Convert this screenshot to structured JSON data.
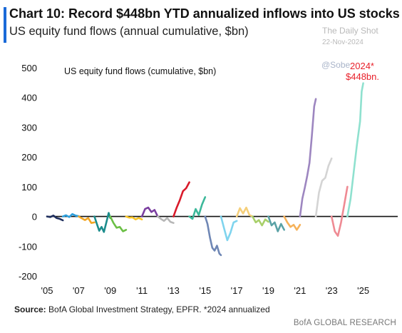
{
  "header": {
    "title": "Chart 10: Record $448bn YTD annualized inflows into US stocks",
    "subtitle": "US equity fund flows (annual cumulative, $bn)"
  },
  "watermark": {
    "line1": "The Daily Shot",
    "line2": "22-Nov-2024",
    "handle": "@Sobe"
  },
  "footer": {
    "source_label": "Source:",
    "source_text": " BofA Global Investment Strategy, EPFR. *2024 annualized",
    "brand": "BofA GLOBAL RESEARCH"
  },
  "chart_data": {
    "type": "line",
    "inner_label": "US equity fund flows (cumulative, $bn)",
    "annotation": {
      "line1": "2024*",
      "line2": "$448bn.",
      "color": "#e8202a"
    },
    "x_tick_labels": [
      "'05",
      "'07",
      "'09",
      "'11",
      "'13",
      "'15",
      "'17",
      "'19",
      "'21",
      "'23",
      "'25"
    ],
    "x_ticks": [
      2005,
      2007,
      2009,
      2011,
      2013,
      2015,
      2017,
      2019,
      2021,
      2023,
      2025
    ],
    "y_ticks": [
      -200,
      -100,
      0,
      100,
      200,
      300,
      400,
      500
    ],
    "xlim": [
      2005,
      2027
    ],
    "ylim": [
      -200,
      500
    ],
    "grid": false,
    "series": [
      {
        "year": 2005,
        "color": "#1f2f5e",
        "points": [
          [
            2005.0,
            0
          ],
          [
            2005.2,
            -2
          ],
          [
            2005.4,
            3
          ],
          [
            2005.6,
            -5
          ],
          [
            2005.8,
            -8
          ],
          [
            2006.0,
            -13
          ]
        ]
      },
      {
        "year": 2006,
        "color": "#2ea0dd",
        "points": [
          [
            2006.0,
            0
          ],
          [
            2006.2,
            4
          ],
          [
            2006.4,
            -2
          ],
          [
            2006.6,
            8
          ],
          [
            2006.8,
            3
          ],
          [
            2007.0,
            1
          ]
        ]
      },
      {
        "year": 2007,
        "color": "#f2a623",
        "points": [
          [
            2007.0,
            0
          ],
          [
            2007.2,
            -6
          ],
          [
            2007.4,
            -12
          ],
          [
            2007.6,
            -5
          ],
          [
            2007.8,
            -22
          ],
          [
            2008.0,
            -20
          ]
        ]
      },
      {
        "year": 2008,
        "color": "#1b8c8c",
        "points": [
          [
            2008.0,
            0
          ],
          [
            2008.15,
            -25
          ],
          [
            2008.3,
            -48
          ],
          [
            2008.45,
            -35
          ],
          [
            2008.6,
            -52
          ],
          [
            2008.75,
            -20
          ],
          [
            2008.9,
            12
          ],
          [
            2009.0,
            -5
          ]
        ]
      },
      {
        "year": 2009,
        "color": "#6bbf45",
        "points": [
          [
            2009.0,
            0
          ],
          [
            2009.2,
            -22
          ],
          [
            2009.4,
            -38
          ],
          [
            2009.6,
            -35
          ],
          [
            2009.8,
            -50
          ],
          [
            2010.0,
            -45
          ]
        ]
      },
      {
        "year": 2010,
        "color": "#f7c325",
        "points": [
          [
            2010.0,
            0
          ],
          [
            2010.2,
            -4
          ],
          [
            2010.4,
            -3
          ],
          [
            2010.6,
            -10
          ],
          [
            2010.8,
            -5
          ],
          [
            2011.0,
            -10
          ]
        ]
      },
      {
        "year": 2011,
        "color": "#7b3fa0",
        "points": [
          [
            2011.0,
            0
          ],
          [
            2011.2,
            25
          ],
          [
            2011.4,
            30
          ],
          [
            2011.6,
            15
          ],
          [
            2011.8,
            22
          ],
          [
            2012.0,
            0
          ]
        ]
      },
      {
        "year": 2012,
        "color": "#b7b7b7",
        "points": [
          [
            2012.0,
            0
          ],
          [
            2012.2,
            -8
          ],
          [
            2012.4,
            -15
          ],
          [
            2012.6,
            -5
          ],
          [
            2012.8,
            -18
          ],
          [
            2013.0,
            -22
          ]
        ]
      },
      {
        "year": 2013,
        "color": "#d91a2a",
        "points": [
          [
            2013.0,
            0
          ],
          [
            2013.2,
            30
          ],
          [
            2013.4,
            55
          ],
          [
            2013.6,
            85
          ],
          [
            2013.8,
            95
          ],
          [
            2014.0,
            115
          ]
        ]
      },
      {
        "year": 2014,
        "color": "#3cb89a",
        "points": [
          [
            2014.0,
            0
          ],
          [
            2014.2,
            -8
          ],
          [
            2014.4,
            25
          ],
          [
            2014.6,
            5
          ],
          [
            2014.8,
            40
          ],
          [
            2015.0,
            65
          ]
        ]
      },
      {
        "year": 2015,
        "color": "#6f87b5",
        "points": [
          [
            2015.0,
            0
          ],
          [
            2015.15,
            -25
          ],
          [
            2015.3,
            -70
          ],
          [
            2015.45,
            -105
          ],
          [
            2015.6,
            -115
          ],
          [
            2015.75,
            -98
          ],
          [
            2015.9,
            -125
          ],
          [
            2016.0,
            -130
          ]
        ]
      },
      {
        "year": 2016,
        "color": "#7fd4ee",
        "points": [
          [
            2016.0,
            0
          ],
          [
            2016.2,
            -40
          ],
          [
            2016.4,
            -80
          ],
          [
            2016.6,
            -55
          ],
          [
            2016.8,
            -20
          ],
          [
            2017.0,
            -15
          ]
        ]
      },
      {
        "year": 2017,
        "color": "#f5cf7a",
        "points": [
          [
            2017.0,
            0
          ],
          [
            2017.2,
            28
          ],
          [
            2017.4,
            10
          ],
          [
            2017.6,
            30
          ],
          [
            2017.8,
            5
          ],
          [
            2018.0,
            0
          ]
        ]
      },
      {
        "year": 2018,
        "color": "#a8d06a",
        "points": [
          [
            2018.0,
            0
          ],
          [
            2018.2,
            -20
          ],
          [
            2018.4,
            -12
          ],
          [
            2018.6,
            -30
          ],
          [
            2018.8,
            -10
          ],
          [
            2019.0,
            -18
          ]
        ]
      },
      {
        "year": 2019,
        "color": "#5aa2a6",
        "points": [
          [
            2019.0,
            0
          ],
          [
            2019.2,
            -30
          ],
          [
            2019.4,
            -20
          ],
          [
            2019.6,
            -50
          ],
          [
            2019.8,
            -25
          ],
          [
            2020.0,
            -45
          ]
        ]
      },
      {
        "year": 2020,
        "color": "#f6b25a",
        "points": [
          [
            2020.0,
            0
          ],
          [
            2020.2,
            -20
          ],
          [
            2020.4,
            -35
          ],
          [
            2020.6,
            -28
          ],
          [
            2020.8,
            -45
          ],
          [
            2021.0,
            -28
          ]
        ]
      },
      {
        "year": 2021,
        "color": "#9d86c0",
        "points": [
          [
            2021.0,
            0
          ],
          [
            2021.15,
            60
          ],
          [
            2021.3,
            95
          ],
          [
            2021.45,
            135
          ],
          [
            2021.6,
            180
          ],
          [
            2021.75,
            270
          ],
          [
            2021.9,
            370
          ],
          [
            2022.0,
            395
          ]
        ]
      },
      {
        "year": 2022,
        "color": "#d4d4d4",
        "points": [
          [
            2022.0,
            0
          ],
          [
            2022.2,
            80
          ],
          [
            2022.4,
            120
          ],
          [
            2022.6,
            130
          ],
          [
            2022.8,
            170
          ],
          [
            2023.0,
            195
          ]
        ]
      },
      {
        "year": 2023,
        "color": "#ef8a93",
        "points": [
          [
            2023.0,
            0
          ],
          [
            2023.2,
            -50
          ],
          [
            2023.4,
            -65
          ],
          [
            2023.6,
            -20
          ],
          [
            2023.8,
            40
          ],
          [
            2024.0,
            100
          ]
        ]
      },
      {
        "year": 2024,
        "color": "#8fe1cf",
        "points": [
          [
            2024.0,
            0
          ],
          [
            2024.2,
            60
          ],
          [
            2024.4,
            150
          ],
          [
            2024.6,
            240
          ],
          [
            2024.8,
            320
          ],
          [
            2024.9,
            420
          ],
          [
            2025.0,
            448
          ]
        ]
      }
    ]
  }
}
